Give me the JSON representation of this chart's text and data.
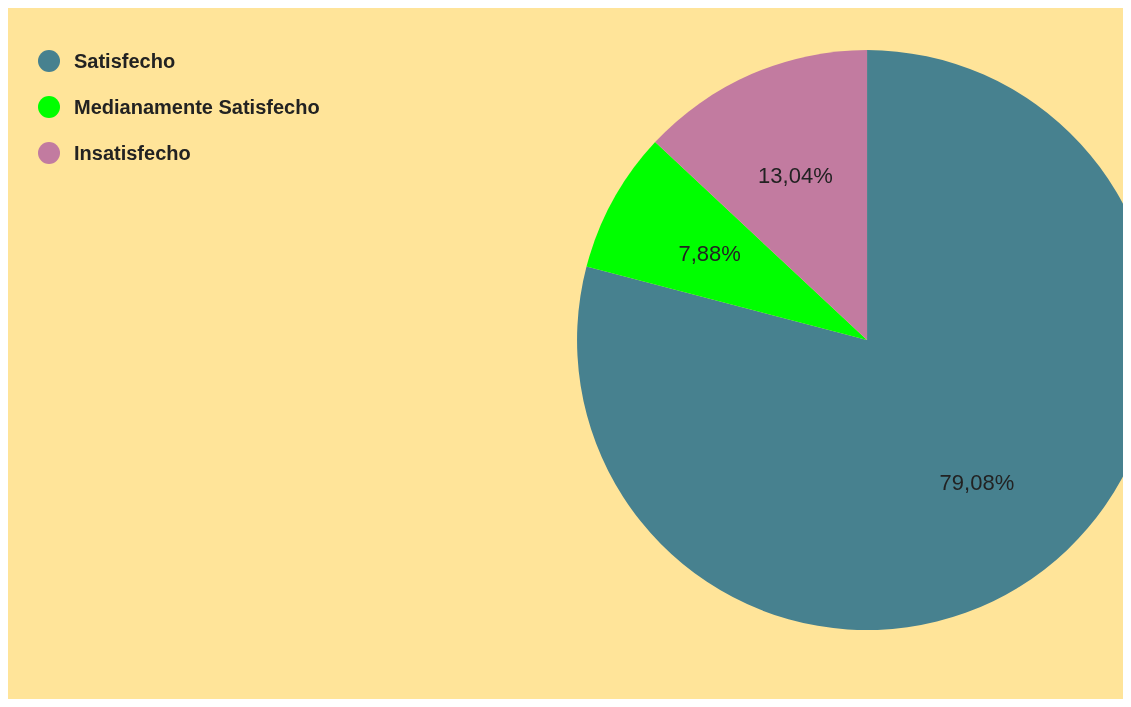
{
  "chart_data": {
    "type": "pie",
    "categories": [
      "Satisfecho",
      "Medianamente Satisfecho",
      "Insatisfecho"
    ],
    "values": [
      79.08,
      7.88,
      13.04
    ],
    "colors": [
      "#47818f",
      "#00ff00",
      "#c27ba0"
    ],
    "value_labels": [
      "79,08%",
      "7,88%",
      "13,04%"
    ],
    "legend": "top left"
  }
}
